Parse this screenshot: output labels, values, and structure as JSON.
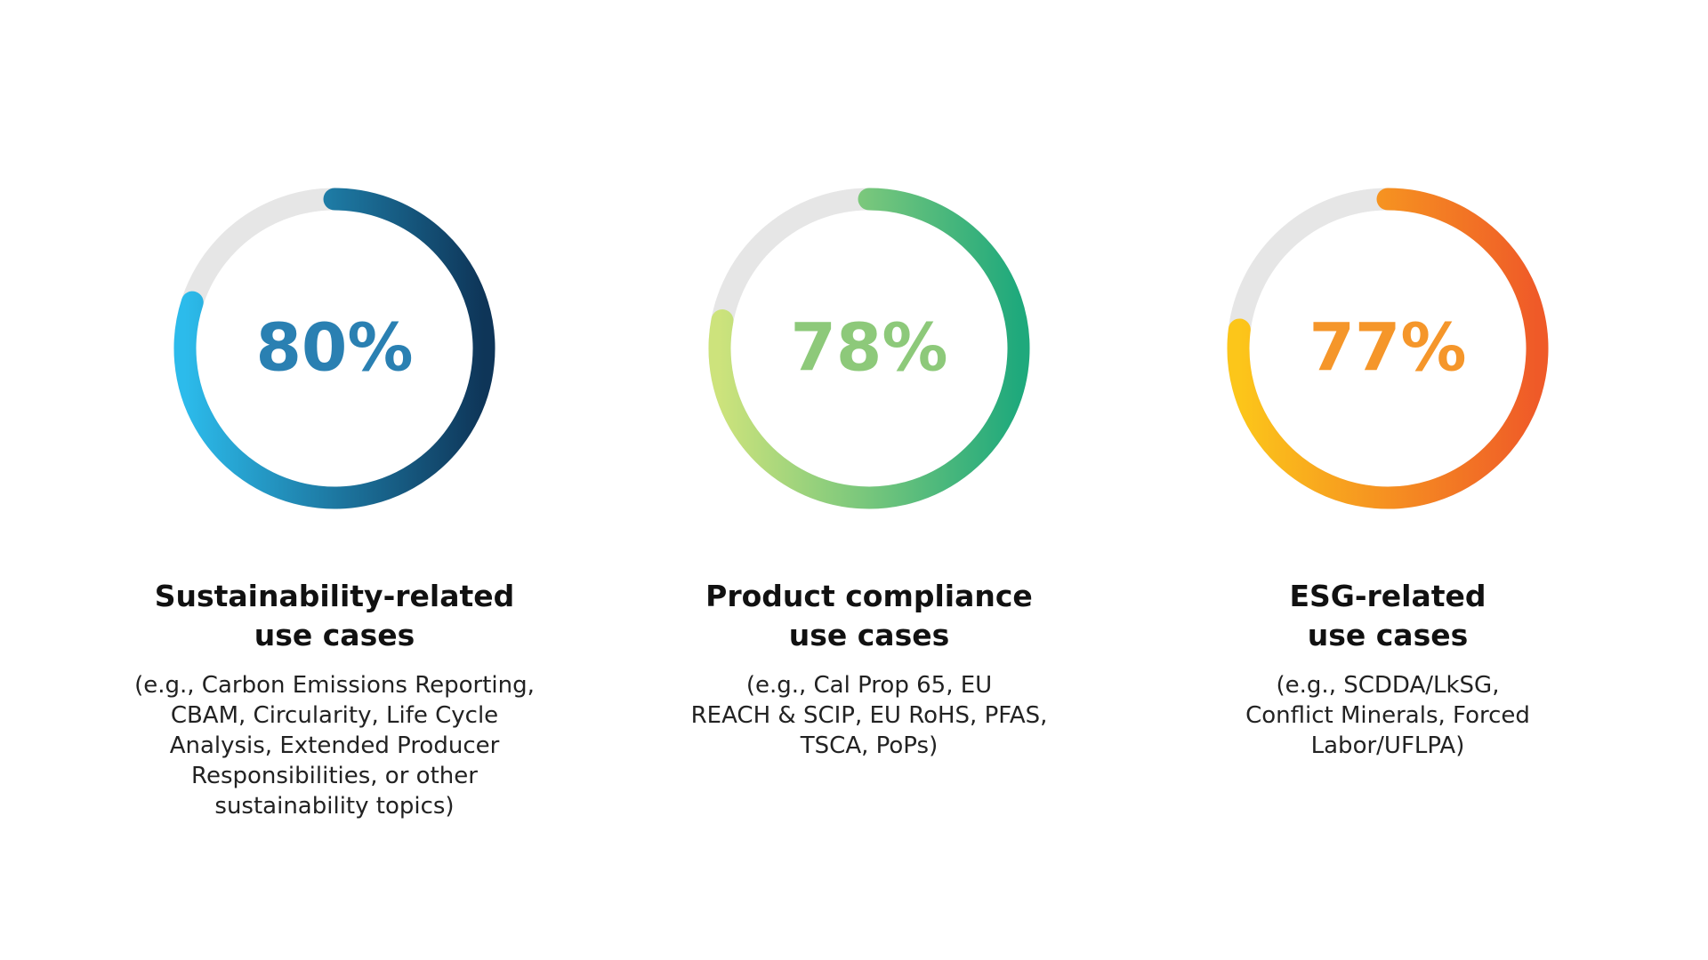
{
  "chart_data": [
    {
      "type": "donut",
      "title": [
        "Sustainability-related",
        "use cases"
      ],
      "subtitle": [
        "(e.g., Carbon Emissions Reporting,",
        "CBAM, Circularity, Life Cycle",
        "Analysis, Extended Producer",
        "Responsibilities, or other",
        "sustainability topics)"
      ],
      "values": [
        80
      ],
      "value_labels": [
        "80%"
      ],
      "ylim": [
        0,
        100
      ],
      "colors": [
        "#0e3558",
        "#2cbbeb"
      ],
      "track_color": "#e6e6e6",
      "label_color": "#2a80b2"
    },
    {
      "type": "donut",
      "title": [
        "Product compliance",
        "use cases"
      ],
      "subtitle": [
        "(e.g., Cal Prop 65, EU",
        "REACH & SCIP, EU RoHS, PFAS,",
        "TSCA, PoPs)"
      ],
      "values": [
        78
      ],
      "value_labels": [
        "78%"
      ],
      "ylim": [
        0,
        100
      ],
      "colors": [
        "#1fa97c",
        "#cde37c"
      ],
      "track_color": "#e6e6e6",
      "label_color": "#8dc97a"
    },
    {
      "type": "donut",
      "title": [
        "ESG-related",
        "use cases"
      ],
      "subtitle": [
        "(e.g., SCDDA/LkSG,",
        "Conflict Minerals, Forced",
        "Labor/UFLPA)"
      ],
      "values": [
        77
      ],
      "value_labels": [
        "77%"
      ],
      "ylim": [
        0,
        100
      ],
      "colors": [
        "#ef5a28",
        "#fcc61a"
      ],
      "track_color": "#e6e6e6",
      "label_color": "#f5962a"
    }
  ]
}
